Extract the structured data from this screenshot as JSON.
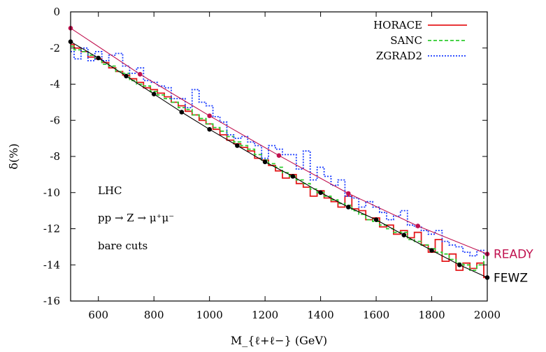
{
  "chart_data": {
    "type": "line",
    "xlabel": "M_{ℓ+ℓ−} (GeV)",
    "ylabel": "δ(%)",
    "xlim": [
      500,
      2000
    ],
    "ylim": [
      -16,
      0
    ],
    "x_ticks": [
      "600",
      "800",
      "1000",
      "1200",
      "1400",
      "1600",
      "1800",
      "2000"
    ],
    "y_ticks": [
      "0",
      "-2",
      "-4",
      "-6",
      "-8",
      "-10",
      "-12",
      "-14",
      "-16"
    ],
    "grid": false,
    "legend_position": "top-right",
    "annotations": [
      "LHC",
      "pp → Z → μ⁺μ⁻",
      "bare cuts"
    ],
    "series": [
      {
        "name": "HORACE",
        "color": "#e41a1c",
        "style": "step-solid",
        "x": [
          500,
          525,
          550,
          575,
          600,
          625,
          650,
          675,
          700,
          725,
          750,
          775,
          800,
          825,
          850,
          875,
          900,
          925,
          950,
          975,
          1000,
          1025,
          1050,
          1075,
          1100,
          1125,
          1150,
          1175,
          1200,
          1225,
          1250,
          1275,
          1300,
          1325,
          1350,
          1375,
          1400,
          1425,
          1450,
          1475,
          1500,
          1525,
          1550,
          1575,
          1600,
          1625,
          1650,
          1675,
          1700,
          1725,
          1750,
          1775,
          1800,
          1825,
          1850,
          1875,
          1900,
          1925,
          1950,
          1975,
          2000
        ],
        "values": [
          -1.8,
          -2.0,
          -2.2,
          -2.5,
          -2.6,
          -2.8,
          -3.1,
          -3.3,
          -3.5,
          -3.7,
          -3.9,
          -4.2,
          -4.3,
          -4.5,
          -4.7,
          -5.0,
          -5.2,
          -5.5,
          -5.7,
          -6.0,
          -6.2,
          -6.5,
          -6.8,
          -7.1,
          -7.3,
          -7.5,
          -7.7,
          -8.1,
          -8.2,
          -8.5,
          -8.8,
          -9.2,
          -9.0,
          -9.5,
          -9.7,
          -10.2,
          -9.9,
          -10.3,
          -10.5,
          -10.8,
          -10.2,
          -10.9,
          -11.0,
          -11.5,
          -11.4,
          -11.9,
          -11.8,
          -12.3,
          -12.1,
          -12.5,
          -12.2,
          -12.9,
          -13.3,
          -12.6,
          -13.8,
          -13.4,
          -14.3,
          -13.9,
          -14.2,
          -13.9,
          -14.7
        ]
      },
      {
        "name": "SANC",
        "color": "#2ecc2e",
        "style": "step-dashed",
        "x": [
          500,
          525,
          550,
          575,
          600,
          625,
          650,
          675,
          700,
          725,
          750,
          775,
          800,
          825,
          850,
          875,
          900,
          925,
          950,
          975,
          1000,
          1025,
          1050,
          1075,
          1100,
          1125,
          1150,
          1175,
          1200,
          1225,
          1250,
          1275,
          1300,
          1325,
          1350,
          1375,
          1400,
          1425,
          1450,
          1475,
          1500,
          1525,
          1550,
          1575,
          1600,
          1625,
          1650,
          1675,
          1700,
          1725,
          1750,
          1775,
          1800,
          1825,
          1850,
          1875,
          1900,
          1925,
          1950,
          1975,
          2000
        ],
        "values": [
          -1.9,
          -2.1,
          -2.2,
          -2.4,
          -2.6,
          -2.9,
          -3.0,
          -3.3,
          -3.4,
          -3.8,
          -4.0,
          -4.1,
          -4.4,
          -4.6,
          -4.8,
          -5.0,
          -5.3,
          -5.4,
          -5.7,
          -5.9,
          -6.2,
          -6.4,
          -6.6,
          -6.9,
          -7.2,
          -7.4,
          -7.6,
          -7.9,
          -8.2,
          -8.4,
          -8.6,
          -8.9,
          -9.1,
          -9.3,
          -9.5,
          -9.8,
          -10.0,
          -10.2,
          -10.4,
          -10.6,
          -10.7,
          -11.0,
          -11.2,
          -11.5,
          -11.6,
          -11.8,
          -12.0,
          -12.2,
          -12.2,
          -12.6,
          -12.7,
          -12.9,
          -13.1,
          -13.3,
          -13.4,
          -13.7,
          -13.9,
          -14.0,
          -14.3,
          -14.0,
          -13.4
        ]
      },
      {
        "name": "ZGRAD2",
        "color": "#1a3cff",
        "style": "step-dotted",
        "x": [
          500,
          525,
          550,
          575,
          600,
          625,
          650,
          675,
          700,
          725,
          750,
          775,
          800,
          825,
          850,
          875,
          900,
          925,
          950,
          975,
          1000,
          1025,
          1050,
          1075,
          1100,
          1125,
          1150,
          1175,
          1200,
          1225,
          1250,
          1275,
          1300,
          1325,
          1350,
          1375,
          1400,
          1425,
          1450,
          1475,
          1500,
          1525,
          1550,
          1575,
          1600,
          1625,
          1650,
          1675,
          1700,
          1725,
          1750,
          1775,
          1800,
          1825,
          1850,
          1875,
          1900,
          1925,
          1950,
          1975,
          2000
        ],
        "values": [
          -2.2,
          -2.6,
          -2.0,
          -2.7,
          -2.2,
          -2.7,
          -2.4,
          -2.3,
          -3.0,
          -3.4,
          -3.1,
          -3.8,
          -3.9,
          -4.1,
          -4.2,
          -4.8,
          -4.8,
          -5.3,
          -4.3,
          -5.0,
          -5.2,
          -5.8,
          -6.1,
          -6.8,
          -7.0,
          -6.9,
          -7.2,
          -7.4,
          -8.1,
          -7.4,
          -7.6,
          -7.9,
          -7.9,
          -8.7,
          -7.7,
          -9.3,
          -8.6,
          -9.1,
          -9.6,
          -9.3,
          -10.2,
          -10.3,
          -10.8,
          -10.5,
          -10.8,
          -11.1,
          -11.5,
          -11.3,
          -11.0,
          -11.8,
          -11.9,
          -12.1,
          -12.3,
          -12.1,
          -12.7,
          -12.9,
          -13.0,
          -13.3,
          -13.5,
          -13.2,
          -13.4
        ]
      },
      {
        "name": "READY",
        "color": "#c0104e",
        "style": "line-markers",
        "x": [
          500,
          750,
          1000,
          1250,
          1500,
          1750,
          2000
        ],
        "values": [
          -0.9,
          -3.45,
          -5.75,
          -7.95,
          -10.05,
          -11.85,
          -13.4
        ]
      },
      {
        "name": "FEWZ",
        "color": "#000000",
        "style": "line-markers",
        "x": [
          500,
          600,
          700,
          800,
          900,
          1000,
          1100,
          1200,
          1300,
          1400,
          1500,
          1600,
          1700,
          1800,
          1900,
          2000
        ],
        "values": [
          -1.65,
          -2.55,
          -3.55,
          -4.55,
          -5.55,
          -6.5,
          -7.4,
          -8.3,
          -9.1,
          -10.0,
          -10.8,
          -11.5,
          -12.35,
          -13.2,
          -14.0,
          -14.7
        ]
      }
    ]
  }
}
